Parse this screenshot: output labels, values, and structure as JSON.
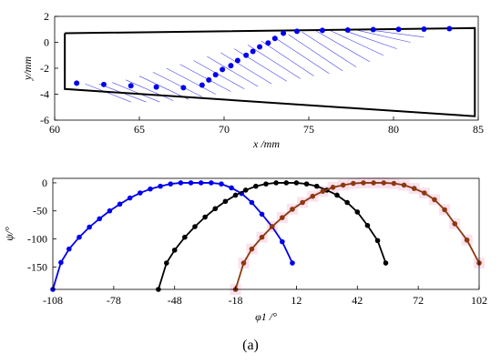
{
  "caption": "(a)",
  "chart_data": [
    {
      "type": "scatter",
      "xlabel": "x /mm",
      "ylabel": "y/mm",
      "xlim": [
        60,
        85
      ],
      "ylim": [
        -6,
        2
      ],
      "xticks": [
        60,
        65,
        70,
        75,
        80,
        85
      ],
      "yticks": [
        2,
        0,
        -2,
        -4,
        -6
      ],
      "grid": false,
      "boundary": {
        "x": [
          60.6,
          84.8,
          84.8,
          60.6,
          60.6
        ],
        "y": [
          0.7,
          1.1,
          -5.7,
          -3.6,
          0.7
        ]
      },
      "points": {
        "x": [
          61.3,
          62.9,
          64.5,
          66.0,
          67.6,
          68.7,
          69.1,
          69.5,
          69.9,
          70.4,
          70.8,
          71.3,
          71.7,
          72.1,
          72.6,
          73.0,
          73.5,
          74.3,
          75.8,
          77.3,
          78.8,
          80.3,
          81.8,
          83.3
        ],
        "y": [
          -3.15,
          -3.25,
          -3.35,
          -3.45,
          -3.5,
          -3.3,
          -2.9,
          -2.5,
          -2.1,
          -1.8,
          -1.4,
          -1.0,
          -0.7,
          -0.35,
          -0.05,
          0.3,
          0.7,
          0.85,
          0.92,
          0.95,
          0.98,
          1.0,
          1.02,
          1.05
        ]
      },
      "hatch_lines": {
        "x1": [
          61.8,
          62.6,
          63.4,
          64.2,
          65.0,
          65.8,
          66.6,
          67.4,
          68.2,
          69.0,
          69.8,
          70.6,
          71.4,
          72.2,
          73.0,
          73.8,
          74.6,
          75.4,
          76.2,
          77.0,
          77.8,
          78.6
        ],
        "y1": [
          -3.2,
          -3.2,
          -3.1,
          -2.9,
          -2.6,
          -2.3,
          -2.0,
          -1.7,
          -1.4,
          -1.1,
          -0.8,
          -0.5,
          -0.2,
          0.1,
          0.35,
          0.6,
          0.8,
          0.9,
          0.95,
          0.95,
          0.95,
          0.95
        ],
        "x2": [
          64.5,
          65.4,
          66.2,
          67.0,
          67.9,
          68.7,
          69.5,
          70.4,
          71.2,
          72.0,
          72.8,
          73.7,
          74.5,
          75.3,
          76.2,
          77.0,
          77.8,
          78.6,
          79.4,
          80.2,
          81.0,
          81.8
        ],
        "y2": [
          -4.6,
          -4.6,
          -4.6,
          -4.5,
          -4.4,
          -4.2,
          -4.0,
          -3.8,
          -3.6,
          -3.4,
          -3.2,
          -3.0,
          -2.8,
          -2.6,
          -2.4,
          -2.2,
          -1.9,
          -1.5,
          -1.0,
          -0.5,
          0.0,
          0.4
        ]
      },
      "colors": {
        "points": "#0000ee",
        "hatch": "#4444ee",
        "boundary": "#000000"
      }
    },
    {
      "type": "line",
      "xlabel": "φ1 /°",
      "ylabel": "ψ/°",
      "xlim": [
        -108,
        102
      ],
      "ylim": [
        -190,
        8
      ],
      "xticks": [
        -108,
        -78,
        -48,
        -18,
        12,
        42,
        72,
        102
      ],
      "yticks": [
        0,
        -50,
        -100,
        -150
      ],
      "grid": false,
      "series": [
        {
          "color": "#0000ee",
          "x": [
            -108,
            -104,
            -100,
            -95,
            -90,
            -85,
            -80,
            -75,
            -70,
            -65,
            -60,
            -55,
            -50,
            -45,
            -40,
            -35,
            -30,
            -25,
            -20,
            -15,
            -10,
            -5,
            0,
            5,
            10
          ],
          "y": [
            -190,
            -142,
            -118,
            -97,
            -79,
            -64,
            -50,
            -38,
            -27,
            -18,
            -11,
            -6,
            -2,
            0,
            0,
            0,
            0,
            -2,
            -9,
            -19,
            -35,
            -56,
            -78,
            -105,
            -143
          ]
        },
        {
          "color": "#000000",
          "x": [
            -56,
            -52,
            -48,
            -43,
            -38,
            -33,
            -28,
            -23,
            -18,
            -13,
            -8,
            -3,
            2,
            7,
            12,
            17,
            22,
            27,
            32,
            37,
            42,
            47,
            52,
            56
          ],
          "y": [
            -190,
            -143,
            -120,
            -97,
            -78,
            -61,
            -46,
            -33,
            -22,
            -13,
            -6,
            -2,
            0,
            0,
            0,
            -2,
            -6,
            -13,
            -22,
            -35,
            -52,
            -76,
            -103,
            -143
          ]
        },
        {
          "color": "#8b3a0f",
          "x": [
            -18,
            -14,
            -10,
            -5,
            0,
            5,
            10,
            15,
            20,
            25,
            30,
            35,
            40,
            45,
            50,
            55,
            60,
            65,
            70,
            75,
            80,
            85,
            90,
            96,
            102
          ],
          "y": [
            -190,
            -143,
            -118,
            -97,
            -78,
            -62,
            -47,
            -35,
            -24,
            -15,
            -8,
            -4,
            -1,
            0,
            0,
            0,
            -1,
            -4,
            -10,
            -18,
            -30,
            -48,
            -73,
            -102,
            -143
          ]
        }
      ],
      "colors": {
        "highlight": "#f7c8e0"
      }
    }
  ]
}
